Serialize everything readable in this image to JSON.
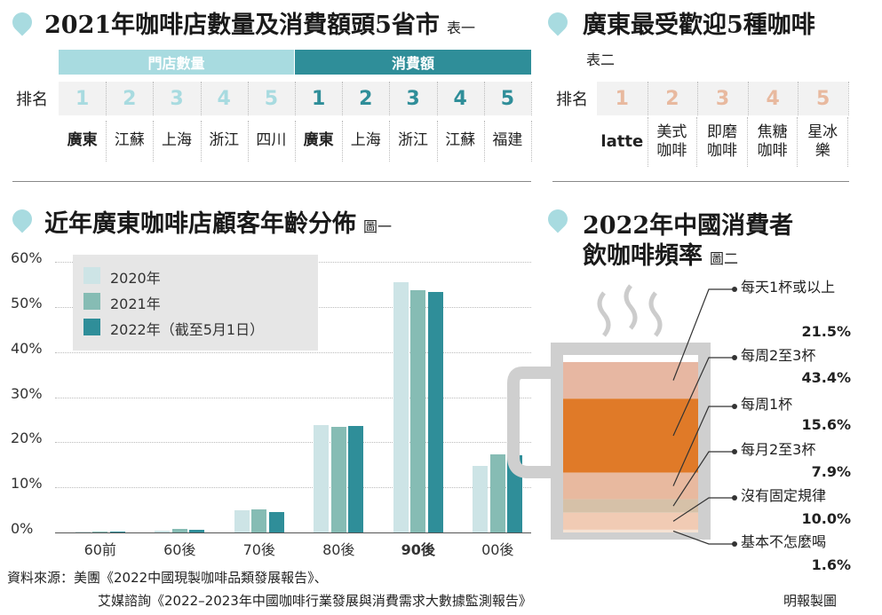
{
  "table1": {
    "title": "2021年咖啡店數量及消費額頭5省市",
    "tag": "表一",
    "header_left": "門店數量",
    "header_right": "消費額",
    "rank_label": "排名",
    "ranks": [
      "1",
      "2",
      "3",
      "4",
      "5",
      "1",
      "2",
      "3",
      "4",
      "5"
    ],
    "stores": [
      "廣東",
      "江蘇",
      "上海",
      "浙江",
      "四川"
    ],
    "spending": [
      "廣東",
      "上海",
      "浙江",
      "江蘇",
      "福建"
    ]
  },
  "table2": {
    "title": "廣東最受歡迎5種咖啡",
    "tag": "表二",
    "rank_label": "排名",
    "ranks": [
      "1",
      "2",
      "3",
      "4",
      "5"
    ],
    "coffees": [
      "latte",
      "美式咖啡",
      "即磨咖啡",
      "焦糖咖啡",
      "星冰樂"
    ]
  },
  "age_chart": {
    "title": "近年廣東咖啡店顧客年齡分佈",
    "tag": "圖一"
  },
  "freq_chart": {
    "title_line1": "2022年中國消費者",
    "title_line2": "飲咖啡頻率",
    "tag": "圖二"
  },
  "chart_data": [
    {
      "type": "bar",
      "categories": [
        "60前",
        "60後",
        "70後",
        "80後",
        "90後",
        "00後"
      ],
      "series": [
        {
          "name": "2020年",
          "values": [
            0.1,
            0.4,
            4.9,
            23.9,
            55.5,
            14.7
          ]
        },
        {
          "name": "2021年",
          "values": [
            0.1,
            0.7,
            5.1,
            23.4,
            53.7,
            17.4
          ]
        },
        {
          "name": "2022年（截至5月1日）",
          "values": [
            0.1,
            0.5,
            4.5,
            23.6,
            53.4,
            17.1
          ]
        }
      ],
      "yticks": [
        "0%",
        "10%",
        "20%",
        "30%",
        "40%",
        "50%",
        "60%"
      ],
      "ylim": [
        0,
        60
      ],
      "legend": "top-left",
      "colors": [
        "#cde4e6",
        "#86bcb4",
        "#2f8e99"
      ],
      "highlight_category": "90後"
    },
    {
      "type": "bar",
      "stacked": true,
      "categories": [
        "每天1杯或以上",
        "每周2至3杯",
        "每周1杯",
        "每月2至3杯",
        "沒有固定規律",
        "基本不怎麼喝"
      ],
      "labels": [
        "21.5%",
        "43.4%",
        "15.6%",
        "7.9%",
        "10.0%",
        "1.6%"
      ],
      "values": [
        21.5,
        43.4,
        15.6,
        7.9,
        10.0,
        1.6
      ],
      "colors": [
        "#e7b7a2",
        "#e07a28",
        "#e8b99f",
        "#d6c1a8",
        "#f1cbb4",
        "#f5e2d4"
      ]
    }
  ],
  "source": {
    "line1": "資料來源：美團《2022中國現製咖啡品類發展報告》、",
    "line2": "艾媒諮詢《2022–2023年中國咖啡行業發展與消費需求大數據監測報告》",
    "credit": "明報製圖"
  }
}
